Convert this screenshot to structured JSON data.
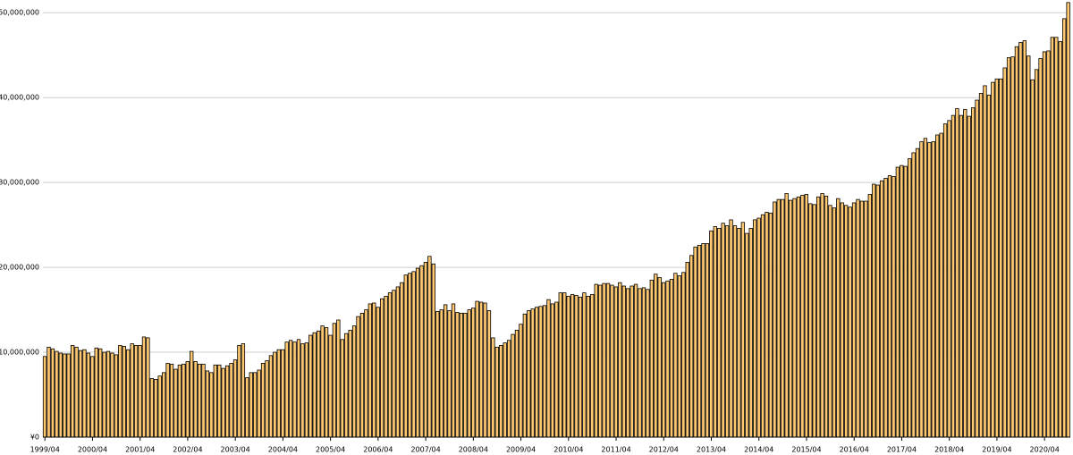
{
  "chart_data": {
    "type": "bar",
    "color": "#ffc870",
    "stroke": "#000000",
    "grid": true,
    "ylim": [
      0,
      51500000
    ],
    "yticks": [
      {
        "value": 0,
        "label": "¥0"
      },
      {
        "value": 10000000,
        "label": "10,000,000"
      },
      {
        "value": 20000000,
        "label": "20,000,000"
      },
      {
        "value": 30000000,
        "label": "30,000,000"
      },
      {
        "value": 40000000,
        "label": "40,000,000"
      },
      {
        "value": 50000000,
        "label": "50,000,000"
      }
    ],
    "categories": [
      "1999/04",
      null,
      null,
      null,
      null,
      null,
      null,
      null,
      null,
      null,
      null,
      null,
      "2000/04",
      null,
      null,
      null,
      null,
      null,
      null,
      null,
      null,
      null,
      null,
      null,
      "2001/04",
      null,
      null,
      null,
      null,
      null,
      null,
      null,
      null,
      null,
      null,
      null,
      "2002/04",
      null,
      null,
      null,
      null,
      null,
      null,
      null,
      null,
      null,
      null,
      null,
      "2003/04",
      null,
      null,
      null,
      null,
      null,
      null,
      null,
      null,
      null,
      null,
      null,
      "2004/04",
      null,
      null,
      null,
      null,
      null,
      null,
      null,
      null,
      null,
      null,
      null,
      "2005/04",
      null,
      null,
      null,
      null,
      null,
      null,
      null,
      null,
      null,
      null,
      null,
      "2006/04",
      null,
      null,
      null,
      null,
      null,
      null,
      null,
      null,
      null,
      null,
      null,
      "2007/04",
      null,
      null,
      null,
      null,
      null,
      null,
      null,
      null,
      null,
      null,
      null,
      "2008/04",
      null,
      null,
      null,
      null,
      null,
      null,
      null,
      null,
      null,
      null,
      null,
      "2009/04",
      null,
      null,
      null,
      null,
      null,
      null,
      null,
      null,
      null,
      null,
      null,
      "2010/04",
      null,
      null,
      null,
      null,
      null,
      null,
      null,
      null,
      null,
      null,
      null,
      "2011/04",
      null,
      null,
      null,
      null,
      null,
      null,
      null,
      null,
      null,
      null,
      null,
      "2012/04",
      null,
      null,
      null,
      null,
      null,
      null,
      null,
      null,
      null,
      null,
      null,
      "2013/04",
      null,
      null,
      null,
      null,
      null,
      null,
      null,
      null,
      null,
      null,
      null,
      "2014/04",
      null,
      null,
      null,
      null,
      null,
      null,
      null,
      null,
      null,
      null,
      null,
      "2015/04",
      null,
      null,
      null,
      null,
      null,
      null,
      null,
      null,
      null,
      null,
      null,
      "2016/04",
      null,
      null,
      null,
      null,
      null,
      null,
      null,
      null,
      null,
      null,
      null,
      "2017/04",
      null,
      null,
      null,
      null,
      null,
      null,
      null,
      null,
      null,
      null,
      null,
      "2018/04",
      null,
      null,
      null,
      null,
      null,
      null,
      null,
      null,
      null,
      null,
      null,
      "2019/04",
      null,
      null,
      null,
      null,
      null,
      null,
      null,
      null,
      null,
      null,
      null,
      "2020/04",
      null,
      null,
      null,
      null,
      null,
      null
    ],
    "values": [
      9500000,
      10600000,
      10400000,
      10100000,
      9900000,
      9800000,
      9800000,
      10800000,
      10600000,
      10200000,
      10300000,
      9900000,
      9500000,
      10500000,
      10400000,
      10000000,
      10100000,
      9900000,
      9700000,
      10800000,
      10700000,
      10300000,
      11000000,
      10800000,
      10800000,
      11800000,
      11700000,
      6900000,
      6800000,
      7200000,
      7600000,
      8700000,
      8600000,
      8000000,
      8500000,
      8600000,
      8900000,
      10100000,
      8900000,
      8600000,
      8600000,
      7800000,
      7600000,
      8500000,
      8500000,
      8100000,
      8400000,
      8700000,
      9100000,
      10800000,
      11000000,
      7000000,
      7600000,
      7600000,
      7900000,
      8700000,
      9000000,
      9600000,
      10000000,
      10300000,
      10300000,
      11200000,
      11400000,
      11200000,
      11500000,
      11000000,
      11100000,
      12000000,
      12300000,
      12500000,
      13100000,
      12900000,
      12000000,
      13400000,
      13800000,
      11500000,
      12200000,
      12600000,
      13100000,
      14200000,
      14600000,
      15000000,
      15700000,
      15800000,
      15300000,
      16300000,
      16600000,
      17000000,
      17300000,
      17700000,
      18200000,
      19100000,
      19300000,
      19500000,
      19900000,
      20200000,
      20600000,
      21300000,
      20400000,
      14800000,
      15000000,
      15600000,
      14900000,
      15700000,
      14700000,
      14600000,
      14600000,
      15000000,
      15200000,
      16000000,
      15900000,
      15800000,
      14900000,
      11700000,
      10600000,
      10800000,
      11100000,
      11400000,
      12100000,
      12600000,
      13300000,
      14500000,
      14900000,
      15100000,
      15300000,
      15400000,
      15500000,
      16200000,
      15700000,
      15900000,
      17000000,
      17000000,
      16600000,
      16800000,
      16700000,
      16500000,
      17000000,
      16600000,
      16800000,
      18000000,
      17900000,
      18100000,
      18100000,
      17900000,
      17700000,
      18200000,
      17800000,
      17500000,
      17800000,
      18000000,
      17500000,
      17600000,
      17400000,
      18500000,
      19200000,
      18800000,
      18200000,
      18400000,
      18600000,
      19300000,
      19000000,
      19400000,
      20600000,
      21400000,
      22400000,
      22600000,
      22800000,
      22800000,
      24300000,
      24800000,
      24600000,
      25200000,
      24900000,
      25600000,
      24900000,
      24600000,
      25300000,
      24000000,
      24600000,
      25600000,
      25800000,
      26200000,
      26500000,
      26400000,
      27700000,
      28000000,
      28000000,
      28700000,
      27900000,
      28100000,
      28300000,
      28500000,
      28600000,
      27500000,
      27400000,
      28300000,
      28700000,
      28400000,
      27300000,
      27000000,
      28100000,
      27600000,
      27300000,
      27100000,
      27600000,
      28000000,
      27800000,
      27800000,
      28600000,
      29800000,
      29700000,
      30200000,
      30500000,
      30800000,
      30700000,
      31800000,
      32000000,
      31900000,
      32800000,
      33500000,
      34000000,
      34800000,
      35200000,
      34700000,
      34800000,
      35600000,
      35800000,
      36900000,
      37300000,
      37900000,
      38700000,
      37900000,
      38600000,
      37800000,
      38800000,
      39700000,
      40500000,
      41400000,
      40300000,
      41800000,
      42200000,
      42200000,
      43500000,
      44700000,
      44800000,
      46000000,
      46500000,
      46700000,
      44900000,
      42100000,
      43300000,
      44600000,
      45400000,
      45500000,
      47100000,
      47100000,
      46600000,
      49300000,
      51200000
    ]
  }
}
